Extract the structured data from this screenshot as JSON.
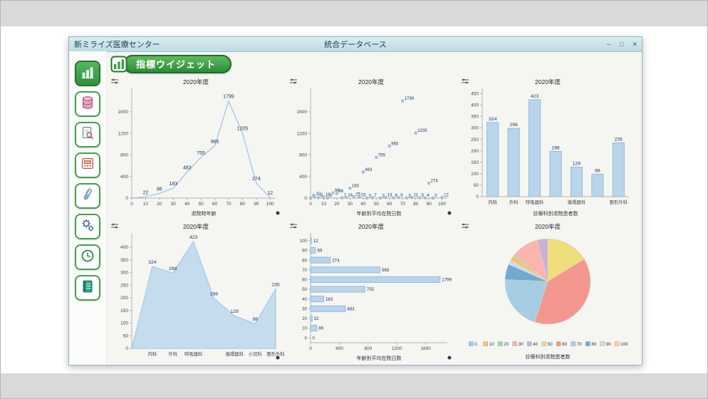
{
  "page": {
    "window_title_left": "新ミライズ医療センター",
    "window_title_center": "統合データベース",
    "controls": {
      "minimize": "─",
      "maximize": "□",
      "close": "✕"
    },
    "widget_badge": "指標ウイジェット"
  },
  "theme": {
    "accent_green": "#2f9240",
    "titlebar_bg": "#c9e3e8",
    "bar_fill": "#b9d5ec",
    "bar_stroke": "#8ab1d4",
    "line_color": "#9dc3e6",
    "area_fill": "#c2daee",
    "label_color": "#17365d",
    "axis_color": "#b3b3b3",
    "tick_color": "#444444"
  },
  "sidebar": {
    "items": [
      {
        "name": "indicator-widget",
        "icon": "bar-chart-icon",
        "active": true
      },
      {
        "name": "database",
        "icon": "database-icon",
        "active": false
      },
      {
        "name": "document-search",
        "icon": "document-search-icon",
        "active": false
      },
      {
        "name": "card-terminal",
        "icon": "card-terminal-icon",
        "active": false
      },
      {
        "name": "lab-test",
        "icon": "test-tube-icon",
        "active": false
      },
      {
        "name": "settings",
        "icon": "gears-icon",
        "active": false
      },
      {
        "name": "history",
        "icon": "clock-icon",
        "active": false
      },
      {
        "name": "records",
        "icon": "notebook-icon",
        "active": false
      }
    ]
  },
  "chart_data": [
    {
      "type": "line",
      "title": "2020年度",
      "xlabel": "退院時年齢",
      "dot": true,
      "xlim": [
        0,
        104
      ],
      "ylim": [
        0,
        1980
      ],
      "xticks": [
        0,
        10,
        20,
        30,
        40,
        50,
        60,
        70,
        80,
        90,
        100
      ],
      "yticks": [
        0,
        400,
        800,
        1200,
        1600
      ],
      "x": [
        0,
        10,
        20,
        30,
        40,
        50,
        60,
        70,
        80,
        90,
        100
      ],
      "values": [
        0,
        22,
        86,
        183,
        483,
        755,
        965,
        1799,
        1205,
        274,
        12
      ],
      "labels": [
        "",
        "22",
        "86",
        "183",
        "483",
        "755",
        "965",
        "1799",
        "1205",
        "274",
        "12"
      ]
    },
    {
      "type": "scatter",
      "title": "2020年度",
      "xlabel": "年齢別平均在院日数",
      "dot": true,
      "xlim": [
        0,
        104
      ],
      "ylim": [
        0,
        1980
      ],
      "xticks": [
        0,
        10,
        20,
        30,
        40,
        50,
        60,
        70,
        80,
        90,
        100
      ],
      "yticks": [
        0,
        400,
        800,
        1200,
        1600
      ],
      "points": [
        [
          0,
          0,
          "0"
        ],
        [
          3,
          32,
          "32"
        ],
        [
          6,
          9,
          "9"
        ],
        [
          10,
          19,
          "19"
        ],
        [
          13,
          3,
          "3"
        ],
        [
          17,
          98,
          "98"
        ],
        [
          20,
          86,
          "86"
        ],
        [
          24,
          7,
          "7"
        ],
        [
          27,
          14,
          "14"
        ],
        [
          30,
          183,
          "183"
        ],
        [
          33,
          25,
          "25"
        ],
        [
          37,
          15,
          "15"
        ],
        [
          40,
          483,
          "483"
        ],
        [
          43,
          0,
          "0"
        ],
        [
          47,
          7,
          "7"
        ],
        [
          50,
          755,
          "755"
        ],
        [
          53,
          2,
          "2"
        ],
        [
          57,
          13,
          "13"
        ],
        [
          60,
          965,
          "965"
        ],
        [
          63,
          6,
          "6"
        ],
        [
          67,
          9,
          "9"
        ],
        [
          70,
          1799,
          "1799"
        ],
        [
          73,
          3,
          "3"
        ],
        [
          77,
          11,
          "11"
        ],
        [
          80,
          1205,
          "1205"
        ],
        [
          83,
          5,
          "5"
        ],
        [
          87,
          4,
          "4"
        ],
        [
          90,
          274,
          "274"
        ],
        [
          93,
          0,
          "0"
        ],
        [
          100,
          12,
          "12"
        ]
      ]
    },
    {
      "type": "bar",
      "title": "2020年度",
      "xlabel": "診療科別退院患者数",
      "dot": false,
      "ylim": [
        0,
        460
      ],
      "yticks": [
        0,
        50,
        100,
        150,
        200,
        250,
        300,
        350,
        400,
        450
      ],
      "categories": [
        "内科",
        "外科",
        "呼吸器科",
        "",
        "循環器科",
        "",
        "整形外科"
      ],
      "values": [
        324,
        298,
        423,
        198,
        129,
        98,
        235
      ],
      "labels": [
        "324",
        "298",
        "423",
        "198",
        "129",
        "98",
        "235"
      ]
    },
    {
      "type": "area",
      "title": "2020年度",
      "xlabel": "",
      "dot": true,
      "ylim": [
        0,
        445
      ],
      "yticks": [
        0,
        50,
        100,
        150,
        200,
        250,
        300,
        350,
        400
      ],
      "categories": [
        "",
        "内科",
        "外科",
        "呼吸器科",
        "",
        "循環器科",
        "小児科",
        "整形外科"
      ],
      "values": [
        0,
        324,
        298,
        423,
        198,
        129,
        98,
        235
      ],
      "labels": [
        "",
        "324",
        "298",
        "423",
        "198",
        "129",
        "98",
        "235"
      ]
    },
    {
      "type": "hbar",
      "title": "2020年度",
      "xlabel": "年齢別平均在院日数",
      "dot": true,
      "xlim": [
        0,
        1900
      ],
      "xticks": [
        0,
        400,
        800,
        1200,
        1600
      ],
      "categories": [
        "0",
        "10",
        "20",
        "30",
        "40",
        "50",
        "60",
        "70",
        "80",
        "90",
        "100"
      ],
      "values": [
        0,
        86,
        22,
        483,
        183,
        755,
        1799,
        965,
        274,
        69,
        12
      ],
      "labels": [
        "0",
        "86",
        "22",
        "483",
        "183",
        "755",
        "1799",
        "965",
        "274",
        "69",
        "12"
      ]
    },
    {
      "type": "pie",
      "title": "2020年度",
      "xlabel": "診療科別退院患者数",
      "dot": false,
      "slices": [
        {
          "label": "50",
          "value": 755
        },
        {
          "label": "60",
          "value": 1799
        },
        {
          "label": "70",
          "value": 965
        },
        {
          "label": "80",
          "value": 274
        },
        {
          "label": "90",
          "value": 69
        },
        {
          "label": "100",
          "value": 12
        },
        {
          "label": "0",
          "value": 0
        },
        {
          "label": "10",
          "value": 86
        },
        {
          "label": "20",
          "value": 22
        },
        {
          "label": "30",
          "value": 483
        },
        {
          "label": "40",
          "value": 183
        }
      ],
      "legend": [
        {
          "label": "0",
          "color": "#9ecae1"
        },
        {
          "label": "10",
          "color": "#fdbf6f"
        },
        {
          "label": "20",
          "color": "#a1d99b"
        },
        {
          "label": "30",
          "color": "#fbb4ae"
        },
        {
          "label": "40",
          "color": "#cab2d6"
        },
        {
          "label": "50",
          "color": "#efdf7a"
        },
        {
          "label": "60",
          "color": "#f4978e"
        },
        {
          "label": "70",
          "color": "#a6cee3"
        },
        {
          "label": "80",
          "color": "#74a9cf"
        },
        {
          "label": "90",
          "color": "#c6e2ee"
        },
        {
          "label": "100",
          "color": "#fdd49e"
        }
      ]
    }
  ]
}
